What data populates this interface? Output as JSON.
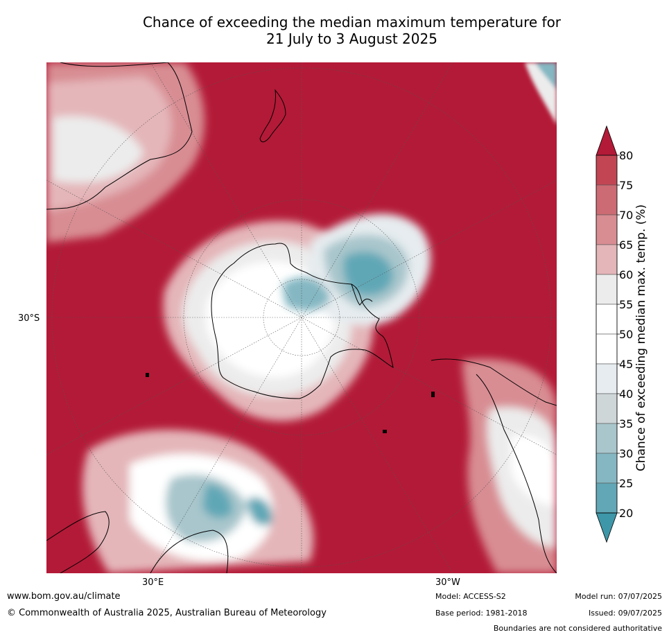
{
  "title_line1": "Chance of exceeding the median maximum temperature for",
  "title_line2": "21 July to 3 August 2025",
  "axis_labels": {
    "lat": "30°S",
    "lon_east": "30°E",
    "lon_west": "30°W"
  },
  "colorbar": {
    "title": "Chance of exceeding median max. temp. (%)",
    "ticks": [
      "80",
      "75",
      "70",
      "65",
      "60",
      "55",
      "50",
      "45",
      "40",
      "35",
      "30",
      "25",
      "20"
    ],
    "colors_top_to_bottom": [
      "#b31a37",
      "#c24553",
      "#cc6b73",
      "#d88d93",
      "#e4b6b9",
      "#ececec",
      "#ffffff",
      "#ffffff",
      "#e6ecef",
      "#cfd6d8",
      "#a8c6cc",
      "#84b7c2",
      "#61a7b6",
      "#3e97a8"
    ]
  },
  "colors": {
    "dominant_warm": "#b31a37",
    "cool_extreme": "#3e97a8",
    "coastline": "#000000"
  },
  "footer": {
    "website": "www.bom.gov.au/climate",
    "copyright": "© Commonwealth of Australia 2025, Australian Bureau of Meteorology",
    "model": "Model: ACCESS-S2",
    "base_period": "Base period: 1981-2018",
    "model_run": "Model run: 07/07/2025",
    "issued": "Issued: 09/07/2025",
    "disclaimer": "Boundaries are not considered authoritative"
  }
}
